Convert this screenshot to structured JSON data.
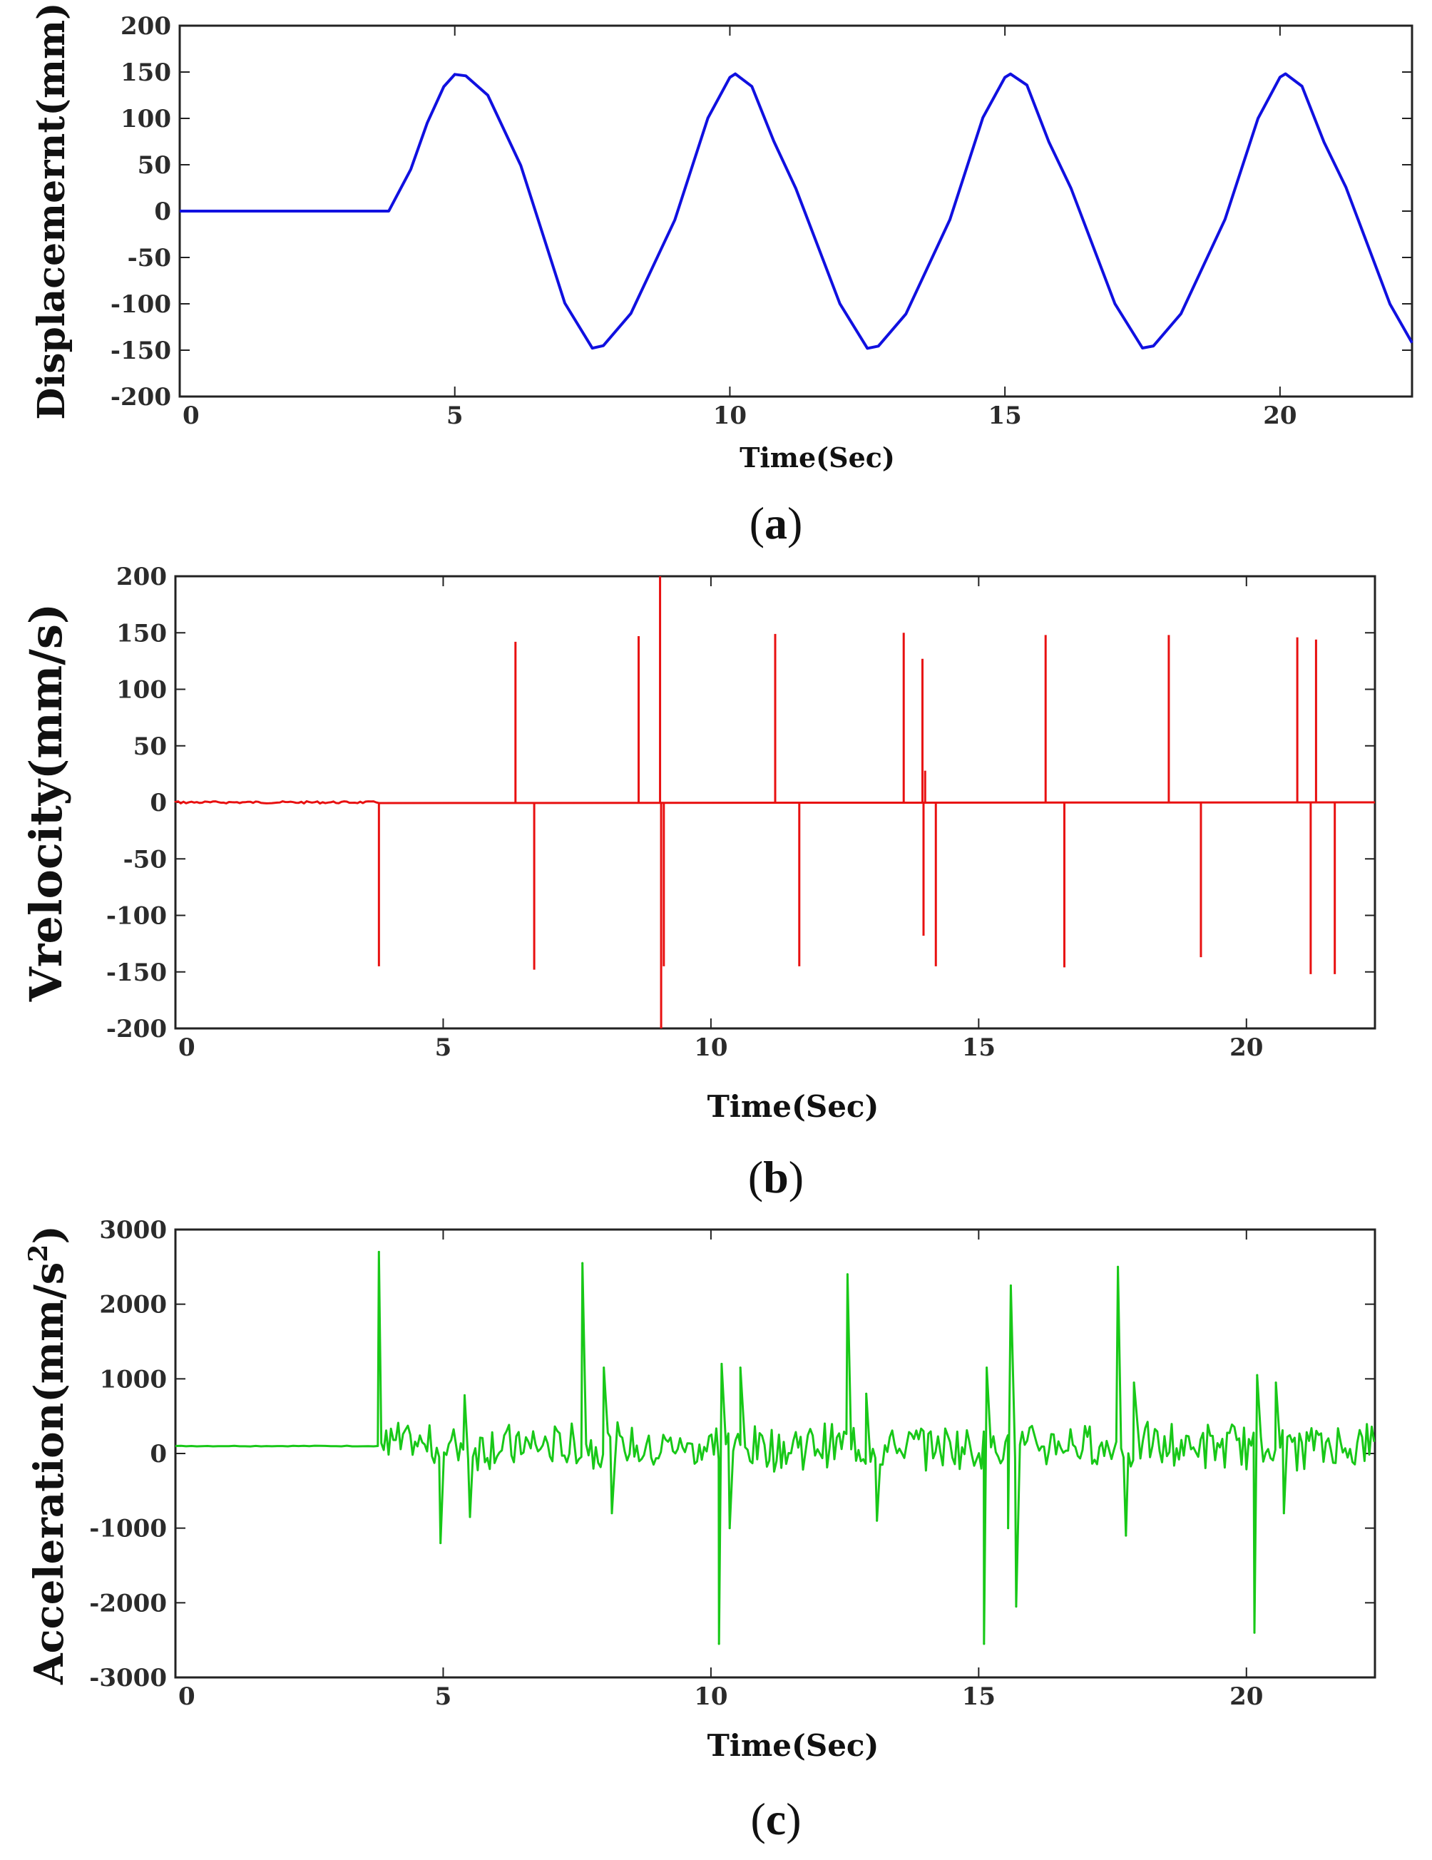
{
  "chart_data": [
    {
      "type": "line",
      "caption_letter": "a",
      "color": "#1010e0",
      "xlabel": "Time(Sec)",
      "ylabel": "Displacemernt(mm)",
      "xlim": [
        0,
        22.4
      ],
      "ylim": [
        -200,
        200
      ],
      "xticks": [
        0,
        5,
        10,
        15,
        20
      ],
      "yticks": [
        200,
        150,
        100,
        50,
        0,
        -50,
        -100,
        -150,
        -200
      ],
      "grid": false,
      "series": [
        {
          "name": "Displacement",
          "x": [
            0,
            3.8,
            4.2,
            4.5,
            4.8,
            5.0,
            5.2,
            5.6,
            6.2,
            7.0,
            7.5,
            7.7,
            8.2,
            9.0,
            9.6,
            10.0,
            10.1,
            10.4,
            10.8,
            11.2,
            12.0,
            12.5,
            12.7,
            13.2,
            14.0,
            14.6,
            15.0,
            15.1,
            15.4,
            15.8,
            16.2,
            17.0,
            17.5,
            17.7,
            18.2,
            19.0,
            19.6,
            20.0,
            20.1,
            20.4,
            20.8,
            21.2,
            22.0,
            22.4
          ],
          "y": [
            0,
            0,
            45,
            95,
            135,
            148,
            146,
            125,
            50,
            -100,
            -148,
            -145,
            -110,
            -10,
            100,
            145,
            148,
            135,
            75,
            25,
            -100,
            -148,
            -145,
            -110,
            -10,
            100,
            145,
            148,
            135,
            75,
            25,
            -100,
            -148,
            -145,
            -110,
            -10,
            100,
            145,
            148,
            135,
            75,
            25,
            -100,
            -142
          ]
        }
      ]
    },
    {
      "type": "line",
      "caption_letter": "b",
      "color": "#e81010",
      "xlabel": "Time(Sec)",
      "ylabel": "Vrelocity(mm/s)",
      "xlim": [
        0,
        22.4
      ],
      "ylim": [
        -200,
        200
      ],
      "xticks": [
        0,
        5,
        10,
        15,
        20
      ],
      "yticks": [
        200,
        150,
        100,
        50,
        0,
        -50,
        -100,
        -150,
        -200
      ],
      "grid": false,
      "series": [
        {
          "name": "Velocity",
          "spikes": [
            {
              "x": 3.8,
              "y": -145
            },
            {
              "x": 6.35,
              "y": 142
            },
            {
              "x": 6.7,
              "y": -148
            },
            {
              "x": 8.65,
              "y": 147
            },
            {
              "x": 9.05,
              "y": 200
            },
            {
              "x": 9.07,
              "y": -200
            },
            {
              "x": 9.12,
              "y": -145
            },
            {
              "x": 11.2,
              "y": 149
            },
            {
              "x": 11.65,
              "y": -145
            },
            {
              "x": 13.6,
              "y": 150
            },
            {
              "x": 13.95,
              "y": 127
            },
            {
              "x": 13.97,
              "y": -118
            },
            {
              "x": 14.0,
              "y": 28
            },
            {
              "x": 14.2,
              "y": -145
            },
            {
              "x": 16.25,
              "y": 148
            },
            {
              "x": 16.6,
              "y": -146
            },
            {
              "x": 18.55,
              "y": 148
            },
            {
              "x": 19.15,
              "y": -137
            },
            {
              "x": 20.95,
              "y": 146
            },
            {
              "x": 21.2,
              "y": -152
            },
            {
              "x": 21.3,
              "y": 144
            },
            {
              "x": 21.65,
              "y": -152
            }
          ]
        }
      ]
    },
    {
      "type": "line",
      "caption_letter": "c",
      "color": "#18c818",
      "xlabel": "Time(Sec)",
      "ylabel": "Acceleration(mm/s",
      "ylabel_superscript": "2",
      "ylabel_close": ")",
      "xlim": [
        0,
        22.4
      ],
      "ylim": [
        -3000,
        3000
      ],
      "xticks": [
        0,
        5,
        10,
        15,
        20
      ],
      "yticks": [
        3000,
        2000,
        1000,
        0,
        -1000,
        -2000,
        -3000
      ],
      "grid": false,
      "series": [
        {
          "name": "Acceleration",
          "baseline_before": 100,
          "onset_x": 3.78,
          "peaks": [
            {
              "x": 3.8,
              "y": 2700
            },
            {
              "x": 4.95,
              "y": -1200
            },
            {
              "x": 5.4,
              "y": 780
            },
            {
              "x": 5.5,
              "y": -850
            },
            {
              "x": 7.6,
              "y": 2550
            },
            {
              "x": 8.0,
              "y": 1150
            },
            {
              "x": 8.15,
              "y": -800
            },
            {
              "x": 10.15,
              "y": -2550
            },
            {
              "x": 10.2,
              "y": 1200
            },
            {
              "x": 10.35,
              "y": -1000
            },
            {
              "x": 10.55,
              "y": 1150
            },
            {
              "x": 12.55,
              "y": 2400
            },
            {
              "x": 12.9,
              "y": 800
            },
            {
              "x": 13.1,
              "y": -900
            },
            {
              "x": 15.1,
              "y": -2550
            },
            {
              "x": 15.15,
              "y": 1150
            },
            {
              "x": 15.55,
              "y": -1000
            },
            {
              "x": 15.6,
              "y": 2250
            },
            {
              "x": 15.7,
              "y": -2050
            },
            {
              "x": 17.6,
              "y": 2500
            },
            {
              "x": 17.75,
              "y": -1100
            },
            {
              "x": 17.9,
              "y": 950
            },
            {
              "x": 20.15,
              "y": -2400
            },
            {
              "x": 20.2,
              "y": 1050
            },
            {
              "x": 20.55,
              "y": 950
            },
            {
              "x": 20.7,
              "y": -800
            }
          ],
          "noise_amplitude": 250
        }
      ]
    }
  ]
}
